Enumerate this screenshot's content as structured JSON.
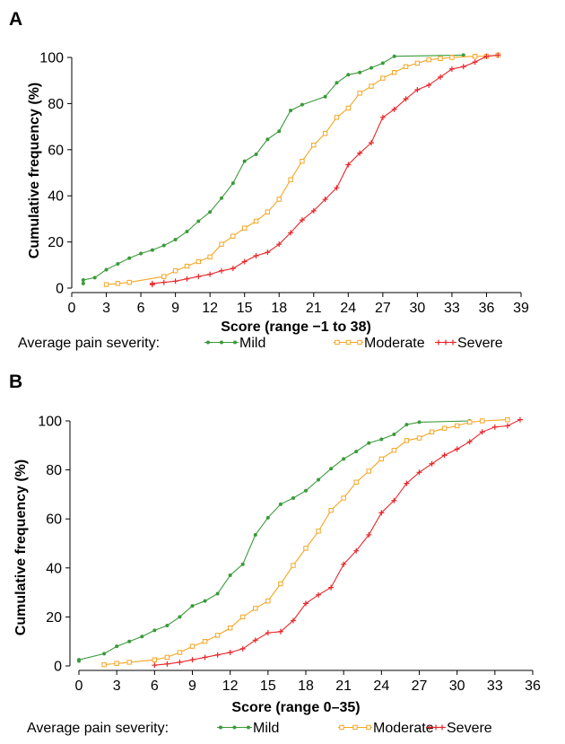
{
  "legend": {
    "prefix": "Average pain severity:",
    "series_labels": [
      "Mild",
      "Moderate",
      "Severe"
    ]
  },
  "colors": {
    "Mild": "#3a9a3a",
    "Moderate": "#f5a623",
    "Severe": "#e8262a"
  },
  "chart_data": [
    {
      "type": "line",
      "panel": "A",
      "xlabel": "Score (range −1 to 38)",
      "ylabel": "Cumulative frequency (%)",
      "xlim": [
        0,
        39
      ],
      "ylim": [
        0,
        100
      ],
      "xticks": [
        0,
        3,
        6,
        9,
        12,
        15,
        18,
        21,
        24,
        27,
        30,
        33,
        36,
        39
      ],
      "yticks": [
        0,
        20,
        40,
        60,
        80,
        100
      ],
      "grid": false,
      "legend_position": "bottom",
      "series": [
        {
          "name": "Mild",
          "marker": "dot",
          "points": [
            [
              1,
              2
            ],
            [
              1,
              3.5
            ],
            [
              2,
              4.5
            ],
            [
              3,
              8
            ],
            [
              4,
              10.5
            ],
            [
              5,
              13
            ],
            [
              6,
              15
            ],
            [
              7,
              16.5
            ],
            [
              8,
              18.5
            ],
            [
              9,
              21
            ],
            [
              10,
              24.5
            ],
            [
              11,
              29
            ],
            [
              12,
              33
            ],
            [
              13,
              39
            ],
            [
              14,
              45.5
            ],
            [
              15,
              55
            ],
            [
              16,
              58
            ],
            [
              17,
              64.5
            ],
            [
              18,
              68
            ],
            [
              19,
              77
            ],
            [
              20,
              79.5
            ],
            [
              22,
              83
            ],
            [
              23,
              89
            ],
            [
              24,
              92.5
            ],
            [
              25,
              93.5
            ],
            [
              26,
              95.5
            ],
            [
              27,
              97.5
            ],
            [
              28,
              100.5
            ],
            [
              34,
              101
            ]
          ]
        },
        {
          "name": "Moderate",
          "marker": "square",
          "points": [
            [
              3,
              1.5
            ],
            [
              4,
              2
            ],
            [
              5,
              2.5
            ],
            [
              8,
              5
            ],
            [
              9,
              7.5
            ],
            [
              10,
              9.5
            ],
            [
              11,
              11.5
            ],
            [
              12,
              13.5
            ],
            [
              13,
              19
            ],
            [
              14,
              22.5
            ],
            [
              15,
              26
            ],
            [
              16,
              29
            ],
            [
              17,
              33
            ],
            [
              18,
              38.5
            ],
            [
              19,
              47
            ],
            [
              20,
              55
            ],
            [
              21,
              62
            ],
            [
              22,
              67
            ],
            [
              23,
              74
            ],
            [
              24,
              78
            ],
            [
              25,
              84.5
            ],
            [
              26,
              87.5
            ],
            [
              27,
              91
            ],
            [
              28,
              93.5
            ],
            [
              29,
              96
            ],
            [
              30,
              97.5
            ],
            [
              31,
              99
            ],
            [
              32,
              99.5
            ],
            [
              33,
              100
            ],
            [
              35,
              100.5
            ],
            [
              36,
              100.5
            ],
            [
              37,
              101
            ]
          ]
        },
        {
          "name": "Severe",
          "marker": "plus",
          "points": [
            [
              7,
              1.5
            ],
            [
              7,
              2
            ],
            [
              8,
              2.5
            ],
            [
              9,
              3
            ],
            [
              10,
              4
            ],
            [
              11,
              5
            ],
            [
              12,
              6
            ],
            [
              13,
              7.5
            ],
            [
              14,
              8.5
            ],
            [
              15,
              11.5
            ],
            [
              16,
              14
            ],
            [
              17,
              15.5
            ],
            [
              18,
              19
            ],
            [
              19,
              24
            ],
            [
              20,
              29.5
            ],
            [
              21,
              33.5
            ],
            [
              22,
              38.5
            ],
            [
              23,
              43.5
            ],
            [
              24,
              53.5
            ],
            [
              25,
              58.5
            ],
            [
              26,
              63
            ],
            [
              27,
              74
            ],
            [
              28,
              77.5
            ],
            [
              29,
              82
            ],
            [
              30,
              86
            ],
            [
              31,
              88
            ],
            [
              32,
              91.5
            ],
            [
              33,
              95
            ],
            [
              34,
              96
            ],
            [
              35,
              98
            ],
            [
              36,
              100.5
            ],
            [
              37,
              101
            ]
          ]
        }
      ]
    },
    {
      "type": "line",
      "panel": "B",
      "xlabel": "Score (range 0–35)",
      "ylabel": "Cumulative frequency (%)",
      "xlim": [
        0,
        36
      ],
      "ylim": [
        0,
        100
      ],
      "xticks": [
        0,
        3,
        6,
        9,
        12,
        15,
        18,
        21,
        24,
        27,
        30,
        33,
        36
      ],
      "yticks": [
        0,
        20,
        40,
        60,
        80,
        100
      ],
      "grid": false,
      "legend_position": "bottom",
      "series": [
        {
          "name": "Mild",
          "marker": "dot",
          "points": [
            [
              0,
              2
            ],
            [
              0,
              2.5
            ],
            [
              2,
              5
            ],
            [
              3,
              8
            ],
            [
              4,
              10
            ],
            [
              5,
              12
            ],
            [
              6,
              14.5
            ],
            [
              7,
              16.5
            ],
            [
              8,
              20
            ],
            [
              9,
              24.5
            ],
            [
              10,
              26.5
            ],
            [
              11,
              29.5
            ],
            [
              12,
              37
            ],
            [
              13,
              41.5
            ],
            [
              14,
              53.5
            ],
            [
              15,
              60.5
            ],
            [
              16,
              66
            ],
            [
              17,
              68.5
            ],
            [
              18,
              71.5
            ],
            [
              19,
              76
            ],
            [
              20,
              80.5
            ],
            [
              21,
              84.5
            ],
            [
              22,
              87.5
            ],
            [
              23,
              91
            ],
            [
              24,
              92.5
            ],
            [
              25,
              94.5
            ],
            [
              26,
              98.5
            ],
            [
              27,
              99.5
            ],
            [
              31,
              100
            ]
          ]
        },
        {
          "name": "Moderate",
          "marker": "square",
          "points": [
            [
              2,
              0.5
            ],
            [
              3,
              1
            ],
            [
              4,
              1.5
            ],
            [
              6,
              2.5
            ],
            [
              7,
              3.5
            ],
            [
              8,
              5.5
            ],
            [
              9,
              8
            ],
            [
              10,
              10
            ],
            [
              11,
              12.5
            ],
            [
              12,
              15.5
            ],
            [
              13,
              20
            ],
            [
              14,
              23.5
            ],
            [
              15,
              26.5
            ],
            [
              16,
              33.5
            ],
            [
              17,
              41
            ],
            [
              18,
              48
            ],
            [
              19,
              55
            ],
            [
              20,
              63.5
            ],
            [
              21,
              68.5
            ],
            [
              22,
              75
            ],
            [
              23,
              79.5
            ],
            [
              24,
              84.5
            ],
            [
              25,
              88
            ],
            [
              26,
              92
            ],
            [
              27,
              93
            ],
            [
              28,
              95.5
            ],
            [
              29,
              97
            ],
            [
              30,
              98
            ],
            [
              31,
              99.5
            ],
            [
              32,
              100
            ],
            [
              34,
              100.5
            ]
          ]
        },
        {
          "name": "Severe",
          "marker": "plus",
          "points": [
            [
              6,
              0.3
            ],
            [
              7,
              0.8
            ],
            [
              8,
              1.5
            ],
            [
              9,
              2.5
            ],
            [
              10,
              3.5
            ],
            [
              11,
              4.5
            ],
            [
              12,
              5.5
            ],
            [
              13,
              7
            ],
            [
              14,
              10.5
            ],
            [
              15,
              13.5
            ],
            [
              16,
              14
            ],
            [
              17,
              18.5
            ],
            [
              18,
              25.5
            ],
            [
              19,
              29
            ],
            [
              20,
              32
            ],
            [
              21,
              41.5
            ],
            [
              22,
              47
            ],
            [
              23,
              53.5
            ],
            [
              24,
              62.5
            ],
            [
              25,
              67.5
            ],
            [
              26,
              74.5
            ],
            [
              27,
              79
            ],
            [
              28,
              82.5
            ],
            [
              29,
              86
            ],
            [
              30,
              88.5
            ],
            [
              31,
              91.5
            ],
            [
              32,
              95.5
            ],
            [
              33,
              97.5
            ],
            [
              34,
              98
            ],
            [
              35,
              100.5
            ]
          ]
        }
      ]
    }
  ]
}
